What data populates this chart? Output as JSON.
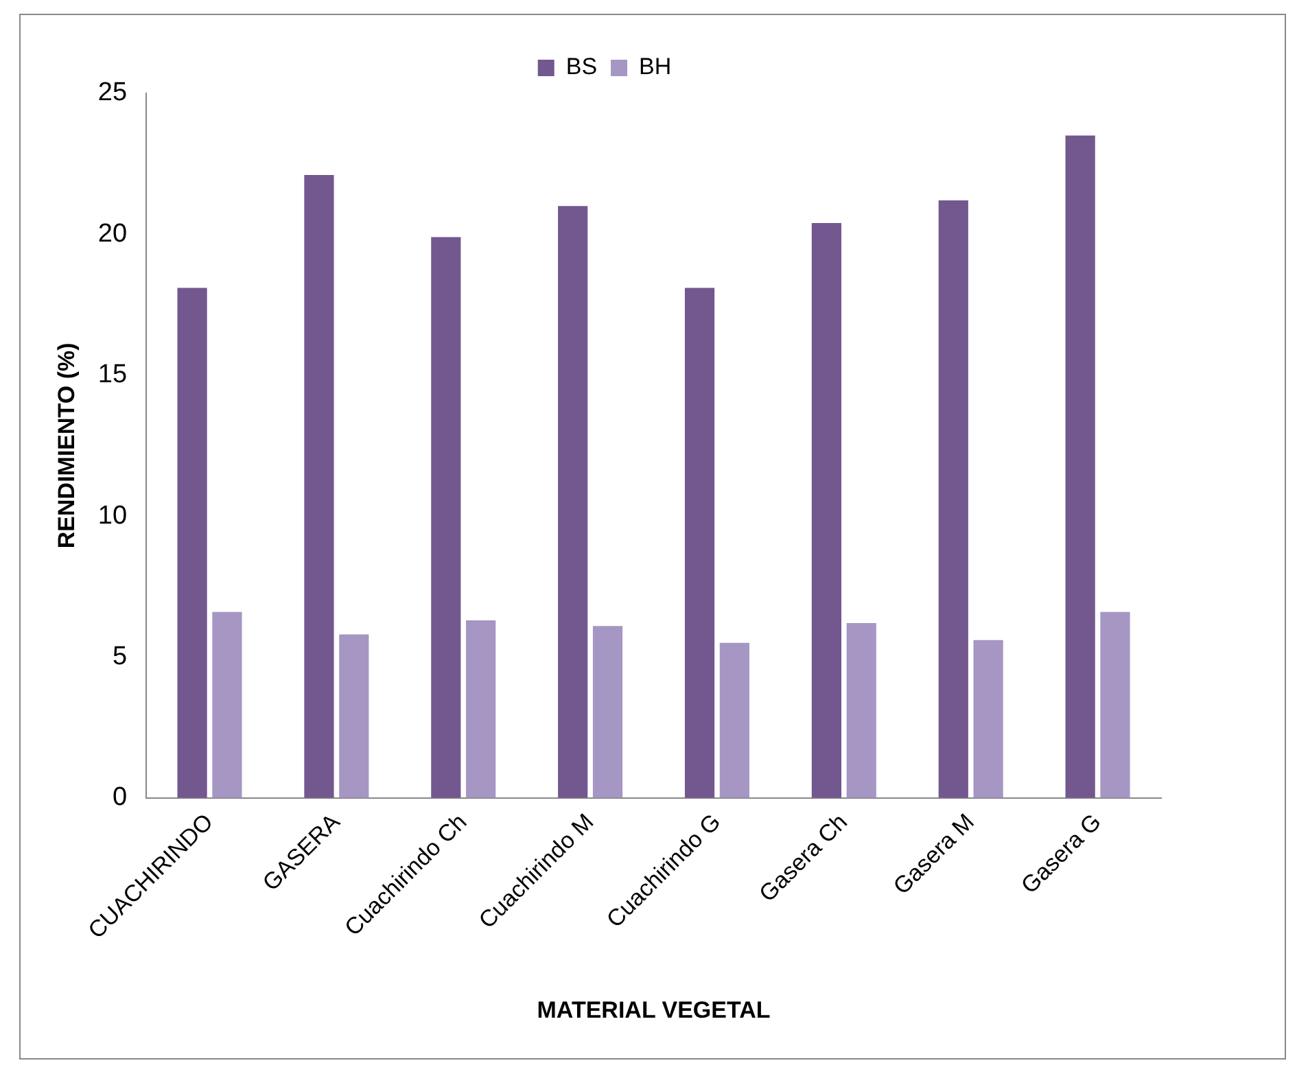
{
  "chart_data": {
    "type": "bar",
    "xlabel": "MATERIAL VEGETAL",
    "ylabel": "RENDIMIENTO (%)",
    "categories": [
      "CUACHIRINDO",
      "GASERA",
      "Cuachirindo Ch",
      "Cuachirindo M",
      "Cuachirindo G",
      "Gasera Ch",
      "Gasera M",
      "Gasera G"
    ],
    "series": [
      {
        "name": "BS",
        "color": "#73578f",
        "values": [
          18.1,
          22.1,
          19.9,
          21.0,
          18.1,
          20.4,
          21.2,
          23.5
        ]
      },
      {
        "name": "BH",
        "color": "#a596c4",
        "values": [
          6.6,
          5.8,
          6.3,
          6.1,
          5.5,
          6.2,
          5.6,
          6.6
        ]
      }
    ],
    "ylim": [
      0,
      25
    ],
    "yticks": [
      0,
      5,
      10,
      15,
      20,
      25
    ],
    "grid": false,
    "legend": "top"
  }
}
